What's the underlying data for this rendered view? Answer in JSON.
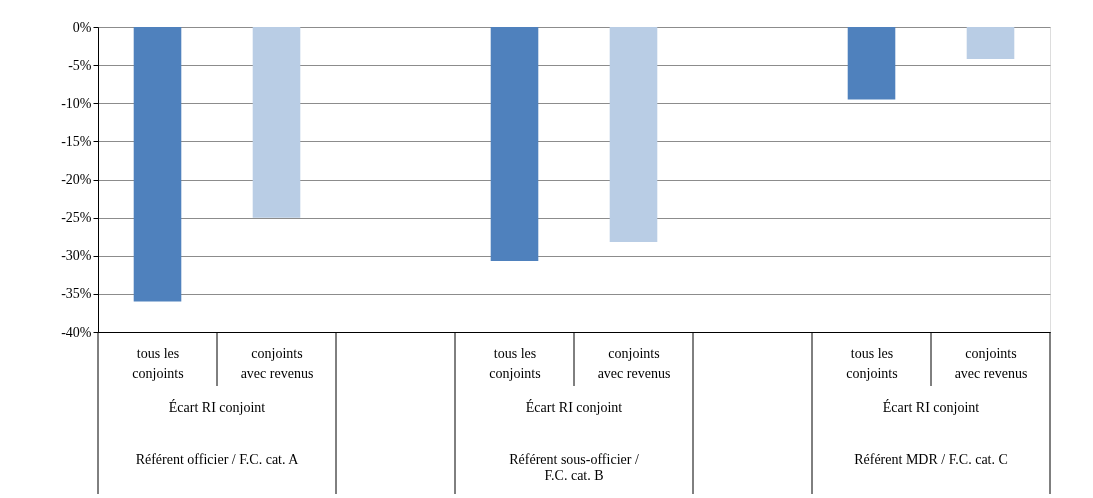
{
  "chart_data": {
    "type": "bar",
    "categories": [
      "tous les\nconjoints",
      "conjoints\navec revenus",
      null,
      "tous les\nconjoints",
      "conjoints\navec revenus",
      null,
      "tous les\nconjoints",
      "conjoints\navec revenus"
    ],
    "values": [
      -36,
      -25,
      null,
      -30.7,
      -28.2,
      null,
      -9.5,
      -4.2
    ],
    "colors": [
      "#4f81bd",
      "#b9cde5",
      null,
      "#4f81bd",
      "#b9cde5",
      null,
      "#4f81bd",
      "#b9cde5"
    ],
    "ylim": [
      -40,
      0
    ],
    "yticks": [
      {
        "value": -40,
        "label": "-40%"
      },
      {
        "value": -35,
        "label": "-35%"
      },
      {
        "value": -30,
        "label": "-30%"
      },
      {
        "value": -25,
        "label": "-25%"
      },
      {
        "value": -20,
        "label": "-20%"
      },
      {
        "value": -15,
        "label": "-15%"
      },
      {
        "value": -10,
        "label": "-10%"
      },
      {
        "value": -5,
        "label": "-5%"
      },
      {
        "value": 0,
        "label": "0%"
      }
    ],
    "grid": "y",
    "legend": false,
    "annotations": [
      "Écart RI conjoint",
      "Référent officier / F.C. cat. A",
      "Écart RI conjoint",
      "Référent sous-officier /\nF.C. cat. B",
      "Écart RI conjoint",
      "Référent MDR / F.C. cat. C"
    ]
  }
}
